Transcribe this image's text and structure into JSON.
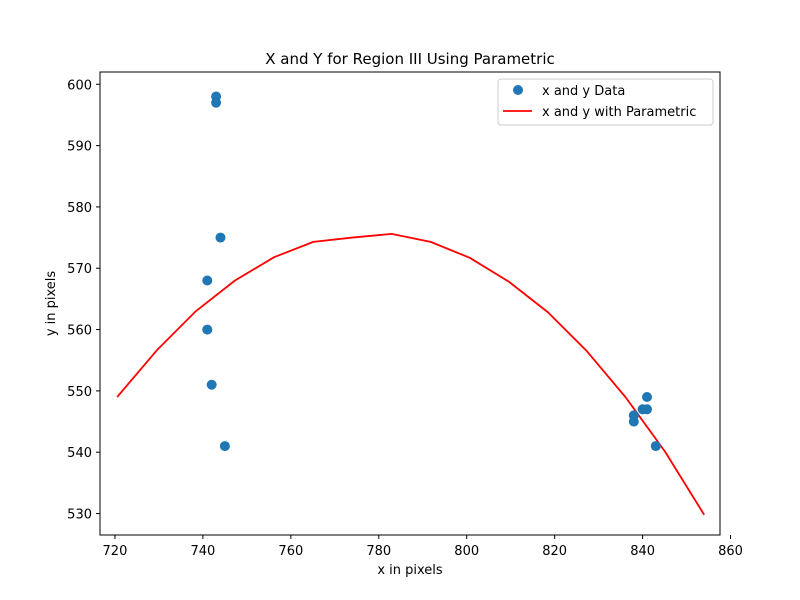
{
  "chart_data": {
    "type": "scatter",
    "title": "X and Y for Region III Using Parametric",
    "xlabel": "x in pixels",
    "ylabel": "y in pixels",
    "xlim": [
      716.6,
      857.6
    ],
    "ylim": [
      526.5,
      602
    ],
    "xticks": [
      720,
      740,
      760,
      780,
      800,
      820,
      840,
      860
    ],
    "yticks": [
      530,
      540,
      550,
      560,
      570,
      580,
      590,
      600
    ],
    "grid": false,
    "legend_position": "top-right",
    "series": [
      {
        "name": "x and y Data",
        "kind": "scatter",
        "color": "#1f77b4",
        "points": [
          [
            743,
            598
          ],
          [
            743,
            597
          ],
          [
            744,
            575
          ],
          [
            741,
            568
          ],
          [
            741,
            560
          ],
          [
            742,
            551
          ],
          [
            745,
            541
          ],
          [
            838,
            546
          ],
          [
            838,
            545
          ],
          [
            840,
            547
          ],
          [
            841,
            549
          ],
          [
            841,
            547
          ],
          [
            843,
            541
          ]
        ]
      },
      {
        "name": "x and y with Parametric",
        "kind": "line",
        "color": "#ff0000",
        "points": [
          [
            720.5,
            549.0
          ],
          [
            729.5,
            556.6
          ],
          [
            738.4,
            563.0
          ],
          [
            747.3,
            568.0
          ],
          [
            756.2,
            571.8
          ],
          [
            765.1,
            574.3
          ],
          [
            774.0,
            575.0
          ],
          [
            782.9,
            575.6
          ],
          [
            791.8,
            574.3
          ],
          [
            800.7,
            571.7
          ],
          [
            809.6,
            567.8
          ],
          [
            818.5,
            562.8
          ],
          [
            827.3,
            556.5
          ],
          [
            836.2,
            548.9
          ],
          [
            845.1,
            540.1
          ],
          [
            854.0,
            529.8
          ]
        ]
      }
    ]
  }
}
